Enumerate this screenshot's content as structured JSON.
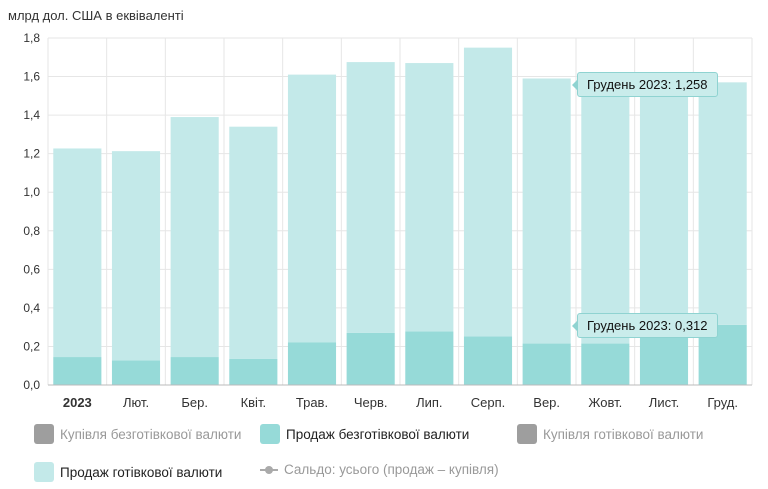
{
  "unit_label": "млрд дол. США в еквіваленті",
  "colors": {
    "cash_sale": "#c3e9e9",
    "noncash_sale": "#96dad8",
    "grid": "#e6e6e6",
    "axis": "#bbbbbb"
  },
  "chart_data": {
    "type": "bar",
    "stacked": true,
    "ylim": [
      0,
      1.8
    ],
    "yticks": [
      "0,0",
      "0,2",
      "0,4",
      "0,6",
      "0,8",
      "1,0",
      "1,2",
      "1,4",
      "1,6",
      "1,8"
    ],
    "categories": [
      "2023",
      "Лют.",
      "Бер.",
      "Квіт.",
      "Трав.",
      "Черв.",
      "Лип.",
      "Серп.",
      "Вер.",
      "Жовт.",
      "Лист.",
      "Груд."
    ],
    "series": [
      {
        "name": "Продаж безготівкової валюти",
        "values": [
          0.145,
          0.128,
          0.145,
          0.135,
          0.222,
          0.27,
          0.278,
          0.252,
          0.215,
          0.215,
          0.265,
          0.312
        ]
      },
      {
        "name": "Продаж готівкової валюти",
        "values": [
          1.082,
          1.085,
          1.245,
          1.205,
          1.388,
          1.405,
          1.392,
          1.498,
          1.375,
          1.355,
          1.305,
          1.258
        ]
      }
    ],
    "grid": true,
    "legend_placement": "bottom"
  },
  "legend": [
    {
      "label": "Купівля безготівкової валюти",
      "color": "#9e9e9e",
      "active": false,
      "kind": "swatch"
    },
    {
      "label": "Продаж безготівкової валюти",
      "color": "#96dad8",
      "active": true,
      "kind": "swatch"
    },
    {
      "label": "Купівля готівкової валюти",
      "color": "#9e9e9e",
      "active": false,
      "kind": "swatch"
    },
    {
      "label": "Продаж готівкової валюти",
      "color": "#c3e9e9",
      "active": true,
      "kind": "swatch"
    },
    {
      "label": "Сальдо: усього (продаж – купівля)",
      "color": "#aaaaaa",
      "active": false,
      "kind": "line"
    }
  ],
  "tooltips": [
    {
      "text": "Грудень 2023: 1,258"
    },
    {
      "text": "Грудень 2023: 0,312"
    }
  ]
}
